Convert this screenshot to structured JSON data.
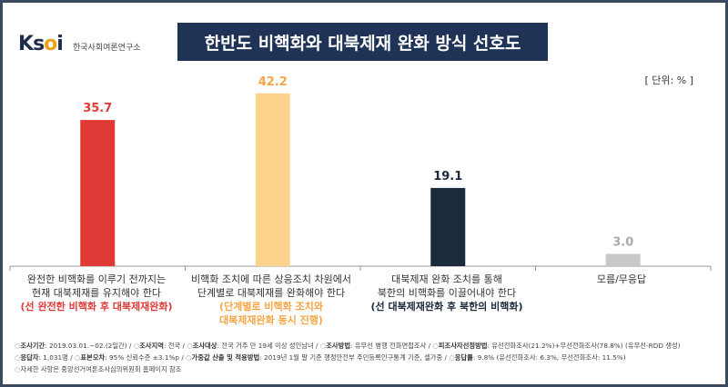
{
  "header": {
    "logo_mark": "Ksoi",
    "logo_sub": "한국사회여론연구소",
    "title": "한반도 비핵화와 대북제재 완화 방식 선호도",
    "unit": "[ 단위: % ]"
  },
  "colors": {
    "bar1": "#e03a37",
    "bar2": "#fcd28c",
    "bar3": "#1b2a3d",
    "bar4": "#c8c8c8",
    "label1": "#e03a37",
    "label2": "#f6a545",
    "label3": "#1b2a3d",
    "label4": "#aaaaaa",
    "title_bg": "#1f3357"
  },
  "chart_data": {
    "type": "bar",
    "title": "한반도 비핵화와 대북제재 완화 방식 선호도",
    "unit": "%",
    "categories": [
      "완전한 비핵화를 이루기 전까지는 현재 대북제재를 유지해야 한다 (선 완전한 비핵화 후 대북제재완화)",
      "비핵화 조치에 따른 상응조치 차원에서 단계별로 대북제재를 완화해야 한다 (단계별로 비핵화 조치와 대북제재완화 동시 진행)",
      "대북제재 완화 조치를 통해 북한의 비핵화를 이끌어내야 한다 (선 대북제재완화 후 북한의 비핵화)",
      "모름/무응답"
    ],
    "values": [
      35.7,
      42.2,
      19.1,
      3.0
    ],
    "value_labels": [
      "35.7",
      "42.2",
      "19.1",
      "3.0"
    ],
    "ylim": [
      0,
      45
    ],
    "xlabel": "",
    "ylabel": ""
  },
  "categories": [
    {
      "line1": "완전한 비핵화를 이루기 전까지는",
      "line2": "현재 대북제재를 유지해야 한다",
      "note1": "(선 완전한 비핵화 후 대북제재완화)",
      "note2": ""
    },
    {
      "line1": "비핵화 조치에 따른 상응조치 차원에서",
      "line2": "단계별로 대북제재를 완화해야 한다",
      "note1": "(단계별로 비핵화 조치와",
      "note2": "대북제재완화 동시 진행)"
    },
    {
      "line1": "대북제재 완화 조치를 통해",
      "line2": "북한의 비핵화를 이끌어내야 한다",
      "note1": "(선 대북제재완화 후 북한의 비핵화)",
      "note2": ""
    },
    {
      "line1": "모름/무응답",
      "line2": "",
      "note1": "",
      "note2": ""
    }
  ],
  "footer": {
    "row1": {
      "period_label": "조사기간",
      "period": ": 2019.03.01.~02.(2일간) /",
      "target_label": "조사대상",
      "target": ": 전국 거주 만 19세 이상 성인남녀 /",
      "area_label": "조사지역",
      "area": ": 전국 /",
      "method_label": "조사방법",
      "method": ": 유무선 병행 전화면접조사 /",
      "sampling_label": "피조사자선정방법",
      "sampling": ": 유선전화조사(21.2%)+무선전화조사(78.8%) (유무선-RDD 생성)"
    },
    "row2": {
      "n_label": "응답자",
      "n": ": 1,031명 /",
      "err_label": "표본오차",
      "err": ": 95% 신뢰수준 ±3.1%p /",
      "weight_label": "가중값 산출 및 적용방법",
      "weight": ": 2019년 1월 말 기준 행정안전부 주민등록인구통계 기준, 셀가중 /",
      "rate_label": "응답률",
      "rate": ": 9.8% (유선전화조사: 6.3%, 무선전화조사: 11.5%)"
    },
    "row3": "자세한 사항은 중앙선거여론조사심의위원회 홈페이지 참조"
  }
}
